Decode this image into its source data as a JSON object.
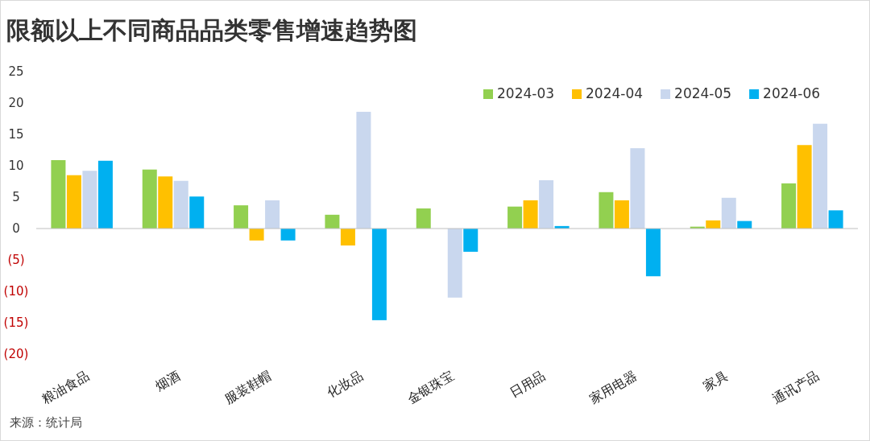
{
  "chart_data": {
    "type": "bar",
    "title": "限额以上不同商品品类零售增速趋势图",
    "categories": [
      "粮油食品",
      "烟酒",
      "服装鞋帽",
      "化妆品",
      "金银珠宝",
      "日用品",
      "家用电器",
      "家具",
      "通讯产品"
    ],
    "series": [
      {
        "name": "2024-03",
        "color": "#92d050",
        "values": [
          10.9,
          9.4,
          3.7,
          2.2,
          3.2,
          3.5,
          5.8,
          0.3,
          7.2
        ]
      },
      {
        "name": "2024-04",
        "color": "#ffc000",
        "values": [
          8.5,
          8.3,
          -1.9,
          -2.7,
          null,
          4.5,
          4.5,
          1.3,
          13.3
        ]
      },
      {
        "name": "2024-05",
        "color": "#c9d7ee",
        "values": [
          9.2,
          7.6,
          4.5,
          18.6,
          -11.0,
          7.7,
          12.8,
          4.9,
          16.7
        ]
      },
      {
        "name": "2024-06",
        "color": "#00b0f0",
        "values": [
          10.8,
          5.1,
          -1.9,
          -14.6,
          -3.7,
          0.4,
          -7.6,
          1.2,
          2.9
        ]
      }
    ],
    "ylim": [
      -20,
      25
    ],
    "yticks": [
      25,
      20,
      15,
      10,
      5,
      0,
      {
        "value": -5,
        "label": "(5)"
      },
      {
        "value": -10,
        "label": "(10)"
      },
      {
        "value": -15,
        "label": "(15)"
      },
      {
        "value": -20,
        "label": "(20)"
      }
    ],
    "legend": "top right",
    "annotations": [
      "来源：统计局"
    ]
  }
}
